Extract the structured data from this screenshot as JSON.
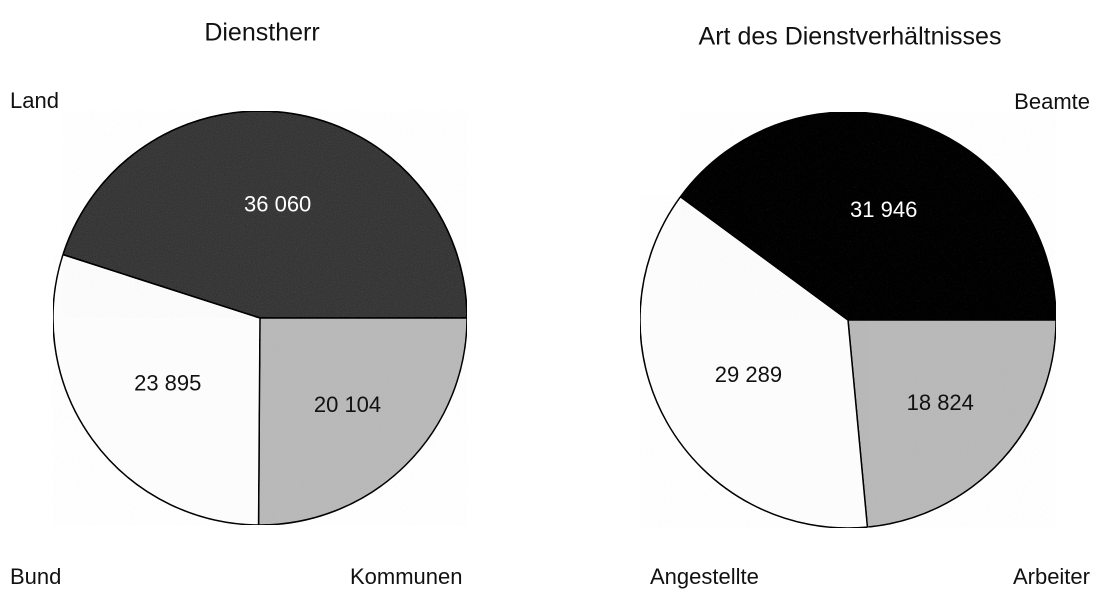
{
  "chart_data": [
    {
      "type": "pie",
      "title": "Dienstherr",
      "categories": [
        "Kommunen",
        "Bund",
        "Land"
      ],
      "values": [
        20104,
        23895,
        36060
      ],
      "value_labels": [
        "20 104",
        "23 895",
        "36 060"
      ],
      "colors": [
        "#bdbdbd",
        "#ffffff",
        "#4a4a4a"
      ]
    },
    {
      "type": "pie",
      "title": "Art des Dienstverhältnisses",
      "categories": [
        "Arbeiter",
        "Angestellte",
        "Beamte"
      ],
      "values": [
        18824,
        29289,
        31946
      ],
      "value_labels": [
        "18 824",
        "29 289",
        "31 946"
      ],
      "colors": [
        "#bdbdbd",
        "#ffffff",
        "#1e1e1e"
      ]
    }
  ]
}
